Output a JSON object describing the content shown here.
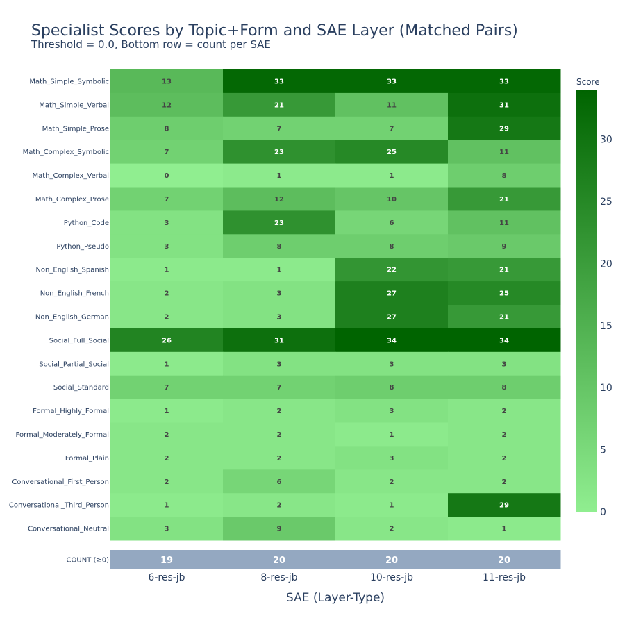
{
  "chart_data": {
    "type": "heatmap",
    "title": "Specialist Scores by Topic+Form and SAE Layer (Matched Pairs)",
    "subtitle": "Threshold = 0.0, Bottom row = count per SAE",
    "xlabel": "SAE (Layer-Type)",
    "x": [
      "6-res-jb",
      "8-res-jb",
      "10-res-jb",
      "11-res-jb"
    ],
    "y": [
      "Math_Simple_Symbolic",
      "Math_Simple_Verbal",
      "Math_Simple_Prose",
      "Math_Complex_Symbolic",
      "Math_Complex_Verbal",
      "Math_Complex_Prose",
      "Python_Code",
      "Python_Pseudo",
      "Non_English_Spanish",
      "Non_English_French",
      "Non_English_German",
      "Social_Full_Social",
      "Social_Partial_Social",
      "Social_Standard",
      "Formal_Highly_Formal",
      "Formal_Moderately_Formal",
      "Formal_Plain",
      "Conversational_First_Person",
      "Conversational_Third_Person",
      "Conversational_Neutral"
    ],
    "z": [
      [
        13,
        33,
        33,
        33
      ],
      [
        12,
        21,
        11,
        31
      ],
      [
        8,
        7,
        7,
        29
      ],
      [
        7,
        23,
        25,
        11
      ],
      [
        0,
        1,
        1,
        8
      ],
      [
        7,
        12,
        10,
        21
      ],
      [
        3,
        23,
        6,
        11
      ],
      [
        3,
        8,
        8,
        9
      ],
      [
        1,
        1,
        22,
        21
      ],
      [
        2,
        3,
        27,
        25
      ],
      [
        2,
        3,
        27,
        21
      ],
      [
        26,
        31,
        34,
        34
      ],
      [
        1,
        3,
        3,
        3
      ],
      [
        7,
        7,
        8,
        8
      ],
      [
        1,
        2,
        3,
        2
      ],
      [
        2,
        2,
        1,
        2
      ],
      [
        2,
        2,
        3,
        2
      ],
      [
        2,
        6,
        2,
        2
      ],
      [
        1,
        2,
        1,
        29
      ],
      [
        3,
        9,
        2,
        1
      ]
    ],
    "count_row": {
      "label": "COUNT (≥0)",
      "values": [
        19,
        20,
        20,
        20
      ],
      "color": "#94a8c1"
    },
    "colorscale": {
      "title": "Score",
      "low": "#90ee90",
      "high": "#006400",
      "zmin": 0,
      "zmax": 34,
      "ticks": [
        0,
        5,
        10,
        15,
        20,
        25,
        30
      ]
    },
    "text_colors": {
      "dark": "#444444",
      "light": "#ffffff"
    }
  }
}
